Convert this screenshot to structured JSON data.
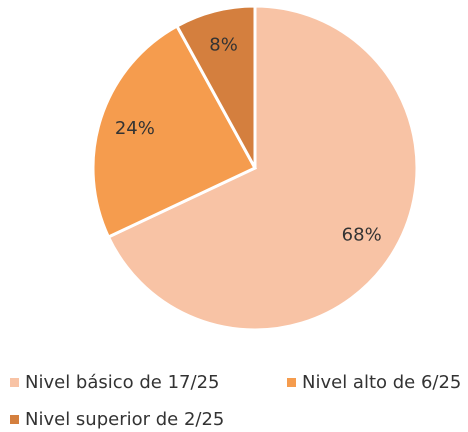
{
  "chart_data": {
    "type": "pie",
    "categories": [
      "Nivel básico de 17/25",
      "Nivel alto de 6/25",
      "Nivel superior de 2/25"
    ],
    "values": [
      68,
      24,
      8
    ],
    "value_labels": [
      "68%",
      "24%",
      "8%"
    ],
    "colors": [
      "#f8c3a5",
      "#f59c4e",
      "#d47f3e"
    ],
    "legend": "bottom"
  }
}
